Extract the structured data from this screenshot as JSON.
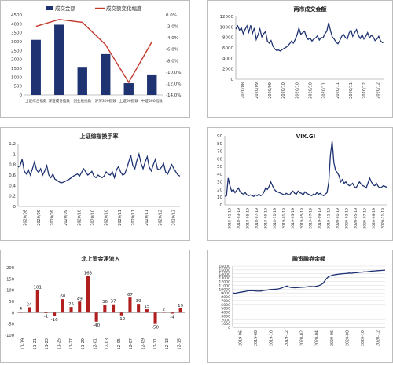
{
  "colors": {
    "navy": "#1f3372",
    "red": "#c0392b",
    "darkred": "#b01e1e",
    "grid": "#d9d9d9",
    "axis": "#888888"
  },
  "chart_data": [
    {
      "id": "c1",
      "type": "bar",
      "legend": [
        "成交金额",
        "成交额变化幅度"
      ],
      "categories": [
        "上证综合指数",
        "深证成份指数",
        "创业板指数",
        "沪深300指数",
        "上证50指数",
        "中证500指数"
      ],
      "bars": [
        3100,
        3950,
        1580,
        2300,
        660,
        1150
      ],
      "line": [
        -2.0,
        -0.8,
        -1.3,
        -5.2,
        -11.8,
        -4.7
      ],
      "ylim_left": [
        0,
        4500
      ],
      "yticks_left": [
        "0",
        "500",
        "1000",
        "1500",
        "2000",
        "2500",
        "3000",
        "3500",
        "4000",
        "4500"
      ],
      "ylim_right": [
        -14,
        0
      ],
      "yticks_right": [
        "0.0%",
        "-2.0%",
        "-4.0%",
        "-6.0%",
        "-8.0%",
        "-10.0%",
        "-12.0%",
        "-14.0%"
      ]
    },
    {
      "id": "c2",
      "type": "line",
      "title": "两市成交金额",
      "ylim": [
        0,
        12000
      ],
      "yticks": [
        "0",
        "2000",
        "4000",
        "6000",
        "8000",
        "10000",
        "12000"
      ],
      "xticks": [
        "2020/08",
        "2020/09",
        "2020/09",
        "2020/10",
        "2020/10",
        "2020/10",
        "2020/11",
        "2020/11",
        "2020/11",
        "2020/12",
        "2020/12"
      ],
      "values": [
        9600,
        10200,
        9400,
        9800,
        8700,
        9500,
        10200,
        9000,
        10300,
        8800,
        9800,
        7600,
        8500,
        9600,
        8100,
        8700,
        9100,
        7300,
        6900,
        7400,
        6300,
        5800,
        5500,
        5600,
        5400,
        5700,
        5900,
        6100,
        6400,
        6800,
        7300,
        6900,
        7600,
        8500,
        9800,
        8600,
        8900,
        9200,
        8100,
        7600,
        7900,
        7300,
        7700,
        7900,
        8300,
        7500,
        8000,
        7900,
        8700,
        9200,
        10800,
        9300,
        8100,
        7700,
        7100,
        6800,
        7400,
        8200,
        8600,
        8000,
        7700,
        8800,
        9400,
        8200,
        8900,
        9500,
        8400,
        7800,
        8500,
        7700,
        8200,
        8900,
        7900,
        8400,
        8100,
        7400,
        7700,
        8200,
        7300,
        7000,
        7200
      ]
    },
    {
      "id": "c3",
      "type": "line",
      "title": "上证综指换手率",
      "ylim": [
        0,
        1.2
      ],
      "yticks": [
        "0",
        "0.2",
        "0.4",
        "0.6",
        "0.8",
        "1",
        "1.2"
      ],
      "xticks": [
        "2020/08",
        "2020/09",
        "2020/09",
        "2020/09",
        "2020/10",
        "2020/10",
        "2020/10",
        "2020/11",
        "2020/11",
        "2020/11",
        "2020/12",
        "2020/12"
      ],
      "values": [
        0.75,
        0.78,
        0.9,
        0.68,
        0.62,
        0.7,
        0.6,
        0.72,
        0.85,
        0.7,
        0.65,
        0.72,
        0.6,
        0.68,
        0.78,
        0.6,
        0.55,
        0.62,
        0.52,
        0.5,
        0.47,
        0.45,
        0.46,
        0.48,
        0.5,
        0.52,
        0.55,
        0.58,
        0.6,
        0.62,
        0.58,
        0.65,
        0.72,
        0.66,
        0.6,
        0.63,
        0.67,
        0.58,
        0.55,
        0.6,
        0.57,
        0.55,
        0.58,
        0.66,
        0.62,
        0.6,
        0.66,
        0.55,
        0.7,
        0.76,
        0.66,
        0.6,
        0.62,
        0.72,
        0.85,
        0.98,
        0.78,
        0.72,
        0.88,
        1.0,
        0.82,
        0.72,
        0.85,
        0.95,
        0.75,
        0.68,
        0.8,
        0.9,
        0.72,
        0.7,
        0.75,
        0.82,
        0.66,
        0.62,
        0.72,
        0.8,
        0.72,
        0.66,
        0.6,
        0.58
      ]
    },
    {
      "id": "c4",
      "type": "line",
      "title": "VIX.GI",
      "ylim": [
        0,
        90
      ],
      "yticks": [
        "0",
        "10",
        "20",
        "30",
        "40",
        "50",
        "60",
        "70",
        "80",
        "90"
      ],
      "xticks": [
        "2018-01-19",
        "2018-03-19",
        "2018-05-19",
        "2018-07-19",
        "2018-09-19",
        "2018-11-19",
        "2019-01-19",
        "2019-03-19",
        "2019-05-19",
        "2019-07-19",
        "2019-09-19",
        "2019-11-19",
        "2020-01-19",
        "2020-03-19",
        "2020-05-19",
        "2020-07-19",
        "2020-09-19",
        "2020-11-19"
      ],
      "values": [
        11,
        12,
        35,
        25,
        18,
        20,
        16,
        19,
        22,
        17,
        15,
        14,
        16,
        13,
        12,
        13,
        12,
        11,
        13,
        12,
        14,
        12,
        13,
        17,
        22,
        20,
        24,
        30,
        25,
        20,
        18,
        17,
        16,
        15,
        14,
        13,
        15,
        14,
        13,
        16,
        18,
        15,
        14,
        18,
        16,
        15,
        13,
        17,
        15,
        14,
        13,
        12,
        14,
        13,
        16,
        14,
        15,
        13,
        12,
        14,
        16,
        30,
        65,
        83,
        55,
        45,
        42,
        38,
        30,
        33,
        28,
        30,
        27,
        25,
        26,
        28,
        24,
        22,
        26,
        30,
        27,
        25,
        24,
        22,
        28,
        35,
        30,
        26,
        25,
        28,
        24,
        22,
        23,
        25,
        24,
        23
      ]
    },
    {
      "id": "c5",
      "type": "bar",
      "title": "北上资金净流入",
      "ylim": [
        -100,
        200
      ],
      "yticks": [
        "-100",
        "-50",
        "0",
        "50",
        "100",
        "150",
        "200"
      ],
      "xticks": [
        "11-19",
        "11-21",
        "11-23",
        "11-25",
        "11-27",
        "11-29",
        "12-01",
        "12-03",
        "12-05",
        "12-07",
        "12-09",
        "12-11",
        "12-13",
        "12-15"
      ],
      "values": [
        {
          "v": 4,
          "label": "4"
        },
        {
          "v": 24,
          "label": "24"
        },
        {
          "v": 101,
          "label": "101"
        },
        {
          "v": -1,
          "label": "-1"
        },
        {
          "v": -16,
          "label": "-16"
        },
        {
          "v": 60,
          "label": "60"
        },
        {
          "v": 25,
          "label": "25"
        },
        {
          "v": 49,
          "label": "49"
        },
        {
          "v": 163,
          "label": "163"
        },
        {
          "v": -40,
          "label": "-40"
        },
        {
          "v": 36,
          "label": "36"
        },
        {
          "v": 37,
          "label": "37"
        },
        {
          "v": -12,
          "label": "-12"
        },
        {
          "v": 67,
          "label": "67"
        },
        {
          "v": 39,
          "label": "39"
        },
        {
          "v": 15,
          "label": "15"
        },
        {
          "v": -50,
          "label": "-50"
        },
        {
          "v": 2,
          "label": "2"
        },
        {
          "v": -4,
          "label": "-4"
        },
        {
          "v": 19,
          "label": "19"
        }
      ]
    },
    {
      "id": "c6",
      "type": "line",
      "title": "融资融券余额",
      "ylim": [
        0,
        16000
      ],
      "yticks": [
        "0",
        "1000",
        "2000",
        "3000",
        "4000",
        "5000",
        "6000",
        "7000",
        "8000",
        "9000",
        "10000",
        "11000",
        "12000",
        "13000",
        "14000",
        "15000",
        "16000"
      ],
      "xticks": [
        "2019-06",
        "2019-08",
        "2019-10",
        "2019-12",
        "2020-02",
        "2020-04",
        "2020-06",
        "2020-08",
        "2020-10",
        "2020-12"
      ],
      "values": [
        9000,
        8900,
        9050,
        9200,
        9300,
        9400,
        9550,
        9600,
        9550,
        9500,
        9450,
        9500,
        9650,
        9700,
        9800,
        9900,
        9950,
        10000,
        10100,
        10300,
        10600,
        10800,
        10500,
        10400,
        10350,
        10400,
        10450,
        10500,
        10550,
        10600,
        10700,
        10650,
        10700,
        10800,
        11100,
        11500,
        12500,
        13200,
        13500,
        13700,
        13800,
        13900,
        14000,
        14050,
        14100,
        14200,
        14150,
        14250,
        14300,
        14400,
        14450,
        14500,
        14550,
        14600,
        14700,
        14750,
        14800,
        14850,
        14900,
        14950
      ]
    }
  ]
}
